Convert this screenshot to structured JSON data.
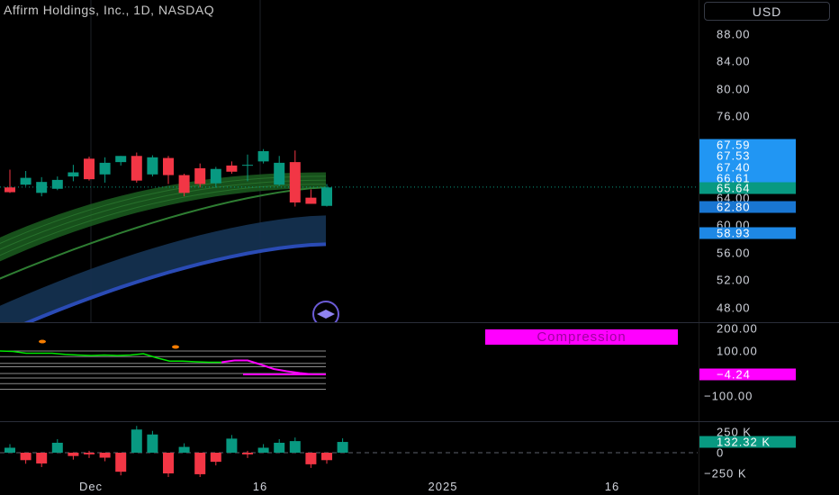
{
  "chart_title": "Affirm Holdings, Inc., 1D, NASDAQ",
  "currency_label": "USD",
  "price_axis_ticks": [
    "88.00",
    "84.00",
    "80.00",
    "76.00",
    "64.00",
    "60.00",
    "56.00",
    "52.00",
    "48.00"
  ],
  "price_tags": [
    {
      "label": "67.59",
      "color": "#2196f3"
    },
    {
      "label": "67.53",
      "color": "#2196f3"
    },
    {
      "label": "67.40",
      "color": "#2196f3"
    },
    {
      "label": "66.61",
      "color": "#2196f3"
    },
    {
      "label": "65.64",
      "color": "#089981"
    },
    {
      "label": "62.80",
      "color": "#1976d2"
    },
    {
      "label": "58.93",
      "color": "#1e88e5"
    }
  ],
  "oscillator": {
    "ticks": [
      "200.00",
      "100.00",
      "−100.00"
    ],
    "value_label": "−4.24",
    "value_color": "#ff00ff",
    "badge": "Compression"
  },
  "volume": {
    "ticks": [
      "250 K",
      "0",
      "−250 K"
    ],
    "value_label": "132.32 K",
    "value_color": "#089981"
  },
  "time_axis": [
    "Dec",
    "16",
    "2025",
    "16"
  ],
  "colors": {
    "up": "#089981",
    "down": "#f23645",
    "ribbon": "#1b5e20",
    "band": "#1e3a8a"
  },
  "chart_data": {
    "type": "candlestick",
    "title": "Affirm Holdings, Inc., 1D, NASDAQ",
    "ylim": [
      46,
      90
    ],
    "candles": [
      {
        "o": 65.6,
        "h": 68.2,
        "l": 64.8,
        "c": 64.9
      },
      {
        "o": 66.0,
        "h": 68.0,
        "l": 65.8,
        "c": 67.0
      },
      {
        "o": 64.8,
        "h": 67.1,
        "l": 64.3,
        "c": 66.4
      },
      {
        "o": 65.4,
        "h": 67.2,
        "l": 65.2,
        "c": 66.7
      },
      {
        "o": 67.2,
        "h": 68.9,
        "l": 66.5,
        "c": 67.8
      },
      {
        "o": 69.8,
        "h": 70.1,
        "l": 66.6,
        "c": 66.8
      },
      {
        "o": 67.5,
        "h": 70.0,
        "l": 66.3,
        "c": 69.2
      },
      {
        "o": 69.3,
        "h": 70.2,
        "l": 68.8,
        "c": 70.2
      },
      {
        "o": 70.2,
        "h": 70.7,
        "l": 66.3,
        "c": 66.6
      },
      {
        "o": 67.5,
        "h": 70.3,
        "l": 67.2,
        "c": 70.0
      },
      {
        "o": 69.9,
        "h": 70.2,
        "l": 66.1,
        "c": 67.4
      },
      {
        "o": 67.4,
        "h": 67.6,
        "l": 64.3,
        "c": 64.8
      },
      {
        "o": 68.4,
        "h": 69.1,
        "l": 65.6,
        "c": 66.1
      },
      {
        "o": 66.2,
        "h": 68.6,
        "l": 65.6,
        "c": 68.3
      },
      {
        "o": 68.8,
        "h": 69.4,
        "l": 67.6,
        "c": 67.9
      },
      {
        "o": 68.8,
        "h": 70.4,
        "l": 66.5,
        "c": 68.9
      },
      {
        "o": 69.4,
        "h": 71.2,
        "l": 69.1,
        "c": 70.9
      },
      {
        "o": 66.0,
        "h": 70.2,
        "l": 65.8,
        "c": 69.2
      },
      {
        "o": 69.3,
        "h": 71.0,
        "l": 62.8,
        "c": 63.4
      },
      {
        "o": 64.1,
        "h": 65.3,
        "l": 63.2,
        "c": 63.2
      },
      {
        "o": 62.9,
        "h": 66.1,
        "l": 62.8,
        "c": 65.6
      }
    ],
    "volume": [
      60,
      -90,
      -130,
      120,
      -40,
      -20,
      -60,
      -230,
      280,
      220,
      -250,
      70,
      -260,
      -110,
      170,
      -20,
      60,
      120,
      140,
      -140,
      -90,
      130
    ],
    "oscillator_line": [
      100,
      98,
      90,
      90,
      90,
      85,
      82,
      80,
      82,
      80,
      82,
      88,
      70,
      55,
      55,
      52,
      50,
      50,
      58,
      58,
      40,
      20,
      10,
      2,
      -4,
      -4
    ],
    "oscillator_levels": [
      100,
      75,
      45,
      30,
      0,
      -20,
      -45,
      -70
    ]
  }
}
